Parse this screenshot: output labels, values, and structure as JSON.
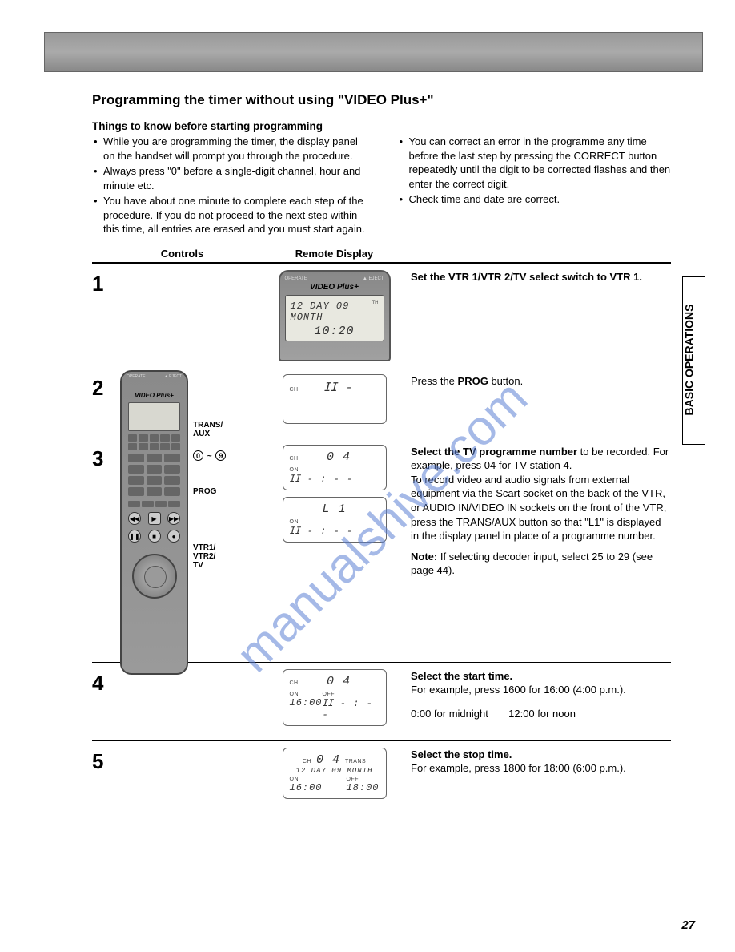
{
  "page_number": "27",
  "side_tab": "BASIC OPERATIONS",
  "title": "Programming the timer without using \"VIDEO Plus+\"",
  "subhead": "Things to know before starting programming",
  "bullets_left": [
    "While you are programming the timer, the display panel on the handset will prompt you through the procedure.",
    "Always press \"0\" before a single-digit channel, hour and minute etc.",
    "You have about one minute to complete each step of the procedure.  If you do not proceed to the next step within this time, all entries are erased and you must start again."
  ],
  "bullets_right": [
    "You can correct an error in the programme any time before the last step by pressing the CORRECT button repeatedly until the digit to be corrected flashes and then enter the correct digit.",
    "Check time and date are correct."
  ],
  "headers": {
    "a": "Controls",
    "b": "Remote Display"
  },
  "remote_brand": "VIDEO Plus+",
  "remote_top_btns": {
    "left": "OPERATE",
    "right": "▲ EJECT"
  },
  "remote_top_screen": {
    "line1": "12 DAY 09 MONTH",
    "line2": "10:20",
    "lbl": "TH"
  },
  "remote_labels": {
    "trans": "TRANS/\nAUX",
    "digits": [
      "0",
      "9"
    ],
    "tilde": "~",
    "prog": "PROG",
    "vtr": "VTR1/\nVTR2/\nTV"
  },
  "steps": [
    {
      "n": "1",
      "instr": [
        {
          "b": true,
          "t": "Set the VTR 1/VTR 2/TV select switch to VTR 1."
        }
      ]
    },
    {
      "n": "2",
      "lcd": [
        {
          "lines": [
            {
              "l": "CH",
              "v": "ⵊⵊ -"
            }
          ]
        }
      ],
      "instr": [
        {
          "b": false,
          "t": "Press the ",
          "b2": "PROG",
          "t2": " button."
        }
      ]
    },
    {
      "n": "3",
      "lcd": [
        {
          "lines": [
            {
              "l": "CH",
              "v": "0 4"
            },
            {
              "l": "ON",
              "v": "ⵊⵊ - : - -"
            }
          ]
        },
        {
          "lines": [
            {
              "l": "",
              "v": "L 1"
            },
            {
              "l": "ON",
              "v": "ⵊⵊ - : - -"
            }
          ]
        }
      ],
      "instr_html": "<b>Select the TV programme number</b> to be recorded. For example, press 04 for TV station 4.<p>To record video and audio signals from external equipment via the Scart socket on the back of the VTR, or AUDIO IN/VIDEO IN sockets on the front of the VTR, press the TRANS/AUX button so that \"L1\" is displayed in the display panel in place of a programme number.</p><p><b>Note:</b> If selecting decoder input, select 25 to 29 (see page 44).</p>"
    },
    {
      "n": "4",
      "lcd": [
        {
          "lines": [
            {
              "l": "CH",
              "v": "0 4"
            },
            {
              "l2": "ON",
              "v2": "16:00",
              "l3": "OFF",
              "v3": "ⵊⵊ - : - -"
            }
          ]
        }
      ],
      "instr_html": "<b>Select the start time.</b><br>For example, press 1600 for 16:00 (4:00 p.m.).<p style='margin-top:12px;'>0:00 for midnight&nbsp;&nbsp;&nbsp;&nbsp;&nbsp;&nbsp;&nbsp;12:00 for noon</p>"
    },
    {
      "n": "5",
      "lcd": [
        {
          "lines": [
            {
              "full": true
            }
          ]
        }
      ],
      "instr_html": "<b>Select the stop time.</b><br>For example, press 1800 for 18:00 (6:00 p.m.)."
    }
  ],
  "step5_lcd": {
    "ch": "CH",
    "ch_v": "0 4",
    "trans": "TRANS",
    "day": "12 DAY 09 MONTH",
    "on": "ON",
    "on_v": "16:00",
    "off": "OFF",
    "off_v": "18:00"
  },
  "watermark_text": "manualshive.com",
  "watermark_color": "#5b7fd4"
}
